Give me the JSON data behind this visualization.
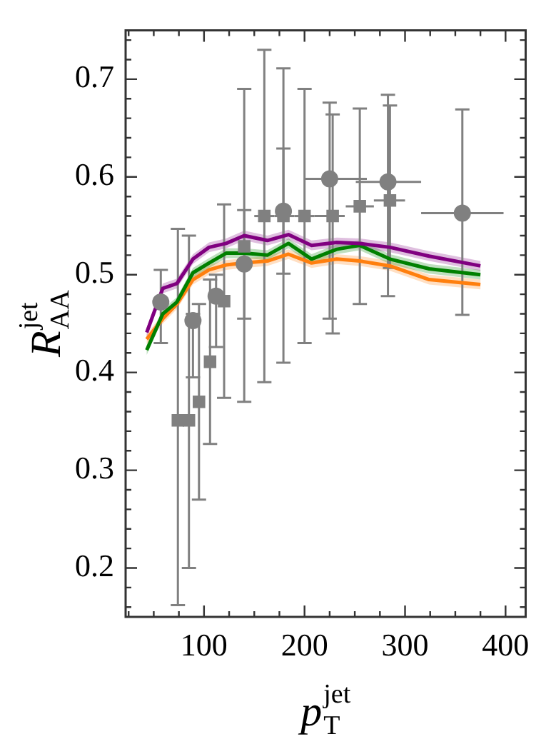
{
  "chart_data": {
    "type": "line",
    "xlabel": "p$_{T}$$^{jet}$",
    "ylabel": "R$_{AA}$$^{jet}$",
    "xlim": [
      22,
      420
    ],
    "ylim": [
      0.15,
      0.75
    ],
    "grid": false,
    "legend": false,
    "xticks": [
      {
        "value": 25,
        "label": null
      },
      {
        "value": 50,
        "label": null
      },
      {
        "value": 75,
        "label": null
      },
      100,
      {
        "value": 125,
        "label": null
      },
      {
        "value": 150,
        "label": null
      },
      {
        "value": 175,
        "label": null
      },
      200,
      {
        "value": 225,
        "label": null
      },
      {
        "value": 250,
        "label": null
      },
      {
        "value": 275,
        "label": null
      },
      300,
      {
        "value": 325,
        "label": null
      },
      {
        "value": 350,
        "label": null
      },
      {
        "value": 375,
        "label": null
      },
      400
    ],
    "yticks": [
      {
        "value": 0.16,
        "label": null
      },
      {
        "value": 0.18,
        "label": null
      },
      0.2,
      {
        "value": 0.22,
        "label": null
      },
      {
        "value": 0.24,
        "label": null
      },
      {
        "value": 0.26,
        "label": null
      },
      {
        "value": 0.28,
        "label": null
      },
      0.3,
      {
        "value": 0.32,
        "label": null
      },
      {
        "value": 0.34,
        "label": null
      },
      {
        "value": 0.36,
        "label": null
      },
      {
        "value": 0.38,
        "label": null
      },
      0.4,
      {
        "value": 0.42,
        "label": null
      },
      {
        "value": 0.44,
        "label": null
      },
      {
        "value": 0.46,
        "label": null
      },
      {
        "value": 0.48,
        "label": null
      },
      0.5,
      {
        "value": 0.52,
        "label": null
      },
      {
        "value": 0.54,
        "label": null
      },
      {
        "value": 0.56,
        "label": null
      },
      {
        "value": 0.58,
        "label": null
      },
      0.6,
      {
        "value": 0.62,
        "label": null
      },
      {
        "value": 0.64,
        "label": null
      },
      {
        "value": 0.66,
        "label": null
      },
      {
        "value": 0.68,
        "label": null
      },
      0.7,
      {
        "value": 0.72,
        "label": null
      },
      {
        "value": 0.74,
        "label": null
      }
    ],
    "series": [
      {
        "type": "line",
        "color": "#ff7f0e",
        "marker": "none",
        "x": [
          43,
          59,
          73,
          89,
          105,
          122,
          140,
          163,
          184,
          207,
          232,
          255,
          285,
          324,
          375
        ],
        "values": [
          0.434,
          0.455,
          0.47,
          0.495,
          0.505,
          0.51,
          0.512,
          0.514,
          0.521,
          0.512,
          0.516,
          0.514,
          0.509,
          0.495,
          0.49
        ],
        "lower": [
          0.429,
          0.45,
          0.465,
          0.49,
          0.5,
          0.505,
          0.507,
          0.509,
          0.516,
          0.507,
          0.511,
          0.509,
          0.504,
          0.49,
          0.485
        ],
        "upper": [
          0.439,
          0.46,
          0.475,
          0.5,
          0.51,
          0.515,
          0.517,
          0.519,
          0.526,
          0.517,
          0.521,
          0.519,
          0.514,
          0.5,
          0.495
        ]
      },
      {
        "type": "line",
        "color": "#008000",
        "marker": "none",
        "x": [
          43,
          59,
          73,
          89,
          105,
          122,
          140,
          163,
          184,
          207,
          232,
          255,
          285,
          324,
          375
        ],
        "values": [
          0.423,
          0.46,
          0.472,
          0.502,
          0.512,
          0.522,
          0.522,
          0.52,
          0.532,
          0.516,
          0.526,
          0.53,
          0.516,
          0.506,
          0.5
        ],
        "lower": [
          0.418,
          0.455,
          0.467,
          0.497,
          0.507,
          0.517,
          0.517,
          0.515,
          0.527,
          0.511,
          0.521,
          0.525,
          0.511,
          0.501,
          0.495
        ],
        "upper": [
          0.428,
          0.465,
          0.477,
          0.507,
          0.517,
          0.527,
          0.527,
          0.525,
          0.537,
          0.521,
          0.531,
          0.535,
          0.521,
          0.511,
          0.505
        ]
      },
      {
        "type": "line",
        "color": "#800080",
        "marker": "none",
        "x": [
          43,
          59,
          73,
          89,
          105,
          122,
          140,
          163,
          184,
          207,
          232,
          255,
          285,
          324,
          375
        ],
        "values": [
          0.441,
          0.486,
          0.491,
          0.516,
          0.528,
          0.532,
          0.54,
          0.535,
          0.541,
          0.53,
          0.533,
          0.532,
          0.528,
          0.519,
          0.509
        ],
        "lower": [
          0.436,
          0.481,
          0.486,
          0.511,
          0.523,
          0.527,
          0.535,
          0.53,
          0.536,
          0.525,
          0.528,
          0.527,
          0.523,
          0.514,
          0.504
        ],
        "upper": [
          0.446,
          0.491,
          0.496,
          0.521,
          0.533,
          0.537,
          0.545,
          0.54,
          0.546,
          0.535,
          0.538,
          0.537,
          0.533,
          0.524,
          0.514
        ]
      },
      {
        "type": "scatter",
        "color": "#808080",
        "marker": "circle",
        "x": [
          57,
          89,
          112,
          140,
          179,
          225,
          283,
          357
        ],
        "values": [
          0.472,
          0.453,
          0.478,
          0.511,
          0.565,
          0.598,
          0.595,
          0.563
        ],
        "errors": [
          [
            0.43,
            0.505
          ],
          [
            0.395,
            0.46
          ],
          [
            0.426,
            0.5
          ],
          [
            0.37,
            0.69
          ],
          [
            0.41,
            0.711
          ],
          [
            0.455,
            0.676
          ],
          [
            0.478,
            0.684
          ],
          [
            0.459,
            0.669
          ]
        ],
        "xerrors": [
          null,
          null,
          null,
          null,
          null,
          [
            200,
            262
          ],
          [
            251,
            316
          ],
          [
            316,
            398
          ]
        ]
      },
      {
        "type": "scatter",
        "color": "#808080",
        "marker": "square",
        "x": [
          74,
          85,
          95,
          106,
          120,
          140,
          160,
          179,
          200,
          228,
          255,
          285
        ],
        "values": [
          0.351,
          0.351,
          0.37,
          0.411,
          0.473,
          0.529,
          0.56,
          0.56,
          0.56,
          0.56,
          0.57,
          0.576
        ],
        "errors": [
          [
            0.162,
            0.547
          ],
          [
            0.2,
            0.54
          ],
          [
            0.27,
            0.47
          ],
          [
            0.327,
            0.495
          ],
          [
            0.374,
            0.572
          ],
          [
            0.455,
            0.566
          ],
          [
            0.39,
            0.73
          ],
          [
            0.501,
            0.629
          ],
          [
            0.43,
            0.69
          ],
          [
            0.44,
            0.664
          ],
          [
            0.47,
            0.67
          ],
          [
            0.507,
            0.673
          ]
        ],
        "xerrors": [
          null,
          null,
          null,
          null,
          null,
          null,
          [
            150,
            170
          ],
          [
            170,
            190
          ],
          [
            190,
            210
          ],
          [
            210,
            240
          ],
          [
            241,
            269
          ],
          [
            269,
            300
          ]
        ]
      }
    ]
  }
}
